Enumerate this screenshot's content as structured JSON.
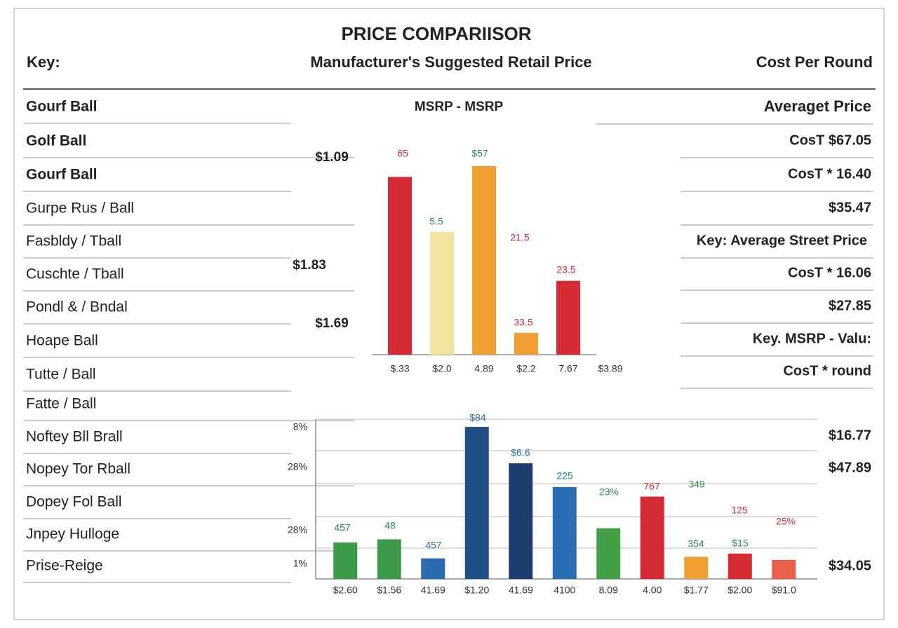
{
  "header": {
    "title": "PRICE COMPARIISOR",
    "key": "Key:",
    "subtitle": "Manufacturer's Suggested Retail Price",
    "right": "Cost Per Round"
  },
  "left_list": [
    "Gourf Ball",
    "Golf Ball",
    "Gourf Ball",
    "Gurpe Rus / Ball",
    "Fasbldy / Tball",
    "Cuschte / Tball",
    "Pondl & / Bndal",
    "Hoape Ball",
    "Tutte / Ball",
    "Fatte / Ball",
    "Noftey Bll Brall",
    "Nopey Tor Rball",
    "Dopey Fol Ball",
    "Jnpey Hulloge",
    "Prise-Reige"
  ],
  "middle_labels": [
    "MSRP - MSRP",
    "$1.09",
    "$1.83",
    "$1.69"
  ],
  "right_list": [
    "Averaget Price",
    "CosT $67.05",
    "CosT * 16.40",
    "$35.47",
    "Key: Average Street Price",
    "CosT * 16.06",
    "$27.85",
    "Key. MSRP - Valu:",
    "CosT * round",
    "$16.77",
    "$47.89",
    "$34.05"
  ],
  "chart_data": [
    {
      "type": "bar",
      "categories": [
        "$.33",
        "$2.0",
        "4.89",
        "$2.2",
        "7.67",
        "$3.89"
      ],
      "values": [
        65,
        45,
        69,
        8,
        27,
        null
      ],
      "colors": [
        "#d42a35",
        "#f0e4a0",
        "#f0a030",
        "#f0a030",
        "#d62b35",
        null
      ],
      "ylim": [
        0,
        70
      ],
      "annotations": [
        {
          "text": "65",
          "color": "#d42a35"
        },
        {
          "text": "5.5",
          "color": "#2e8b4a"
        },
        {
          "text": "$57",
          "color": "#2e8b4a"
        },
        {
          "text": "21.5",
          "color": "#d42a35"
        },
        {
          "text": "33.5",
          "color": "#d42a35"
        },
        {
          "text": "23.5",
          "color": "#d42a35"
        }
      ]
    },
    {
      "type": "bar",
      "categories": [
        "$2.60",
        "$1.56",
        "41.69",
        "$1.20",
        "41.69",
        "4100",
        "8.09",
        "4.00",
        "$1.77",
        "$2.00",
        "$91.0"
      ],
      "values": [
        23,
        25,
        13,
        96,
        73,
        58,
        32,
        52,
        14,
        16,
        12
      ],
      "colors": [
        "#3d9a4a",
        "#3d9a4a",
        "#2b6cb0",
        "#1f4e85",
        "#1d3e6e",
        "#2a6fb5",
        "#43a047",
        "#d62b35",
        "#f0a030",
        "#d62b35",
        "#e8604a"
      ],
      "ylim": [
        0,
        100
      ],
      "axis_notes": [
        "8%",
        "28%",
        "28%",
        "1%"
      ],
      "annotations": [
        {
          "text": "457",
          "color": "#2e8b4a"
        },
        {
          "text": "48",
          "color": "#2e8b4a"
        },
        {
          "text": "457",
          "color": "#2b6cb0"
        },
        {
          "text": "$84",
          "color": "#2b6cb0"
        },
        {
          "text": "$6.6",
          "color": "#2b6cb0"
        },
        {
          "text": "225",
          "color": "#1f7f80"
        },
        {
          "text": "23%",
          "color": "#2e8b4a"
        },
        {
          "text": "767",
          "color": "#d42a35"
        },
        {
          "text": "349",
          "color": "#2e8b4a"
        },
        {
          "text": "125",
          "color": "#d42a35"
        },
        {
          "text": "25%",
          "color": "#d42a35"
        },
        {
          "text": "354",
          "color": "#2e8b4a"
        },
        {
          "text": "$15",
          "color": "#2e8b4a"
        }
      ]
    }
  ]
}
